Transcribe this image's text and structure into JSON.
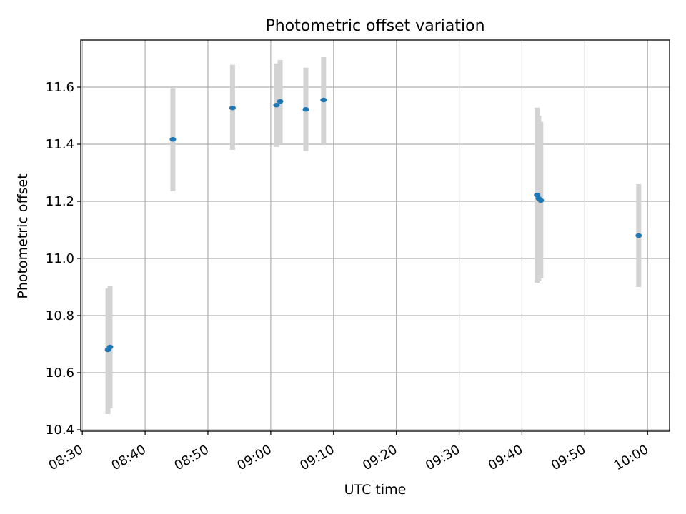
{
  "chart_data": {
    "type": "scatter",
    "title": "Photometric offset variation",
    "xlabel": "UTC time",
    "ylabel": "Photometric offset",
    "x_is_time": true,
    "xlim": [
      "08:29:45",
      "10:03:30"
    ],
    "ylim": [
      10.395,
      11.765
    ],
    "xticks": [
      "08:30",
      "08:40",
      "08:50",
      "09:00",
      "09:10",
      "09:20",
      "09:30",
      "09:40",
      "09:50",
      "10:00"
    ],
    "yticks": [
      "10.4",
      "10.6",
      "10.8",
      "11.0",
      "11.2",
      "11.4",
      "11.6"
    ],
    "grid": true,
    "marker_color": "#1f77b4",
    "errorbar_color": "#d3d3d3",
    "series": [
      {
        "points": [
          {
            "x": "08:34:05",
            "y": 10.68,
            "lo": 10.455,
            "hi": 10.895
          },
          {
            "x": "08:34:25",
            "y": 10.69,
            "lo": 10.475,
            "hi": 10.905
          },
          {
            "x": "08:44:25",
            "y": 11.417,
            "lo": 11.235,
            "hi": 11.597
          },
          {
            "x": "08:53:55",
            "y": 11.527,
            "lo": 11.38,
            "hi": 11.678
          },
          {
            "x": "09:00:55",
            "y": 11.537,
            "lo": 11.39,
            "hi": 11.683
          },
          {
            "x": "09:01:30",
            "y": 11.55,
            "lo": 11.405,
            "hi": 11.695
          },
          {
            "x": "09:05:35",
            "y": 11.522,
            "lo": 11.375,
            "hi": 11.668
          },
          {
            "x": "09:08:25",
            "y": 11.555,
            "lo": 11.4,
            "hi": 11.705
          },
          {
            "x": "09:42:25",
            "y": 11.222,
            "lo": 10.915,
            "hi": 11.528
          },
          {
            "x": "09:42:40",
            "y": 11.21,
            "lo": 10.92,
            "hi": 11.5
          },
          {
            "x": "09:43:00",
            "y": 11.203,
            "lo": 10.93,
            "hi": 11.478
          },
          {
            "x": "09:58:35",
            "y": 11.08,
            "lo": 10.9,
            "hi": 11.26
          }
        ]
      }
    ]
  }
}
